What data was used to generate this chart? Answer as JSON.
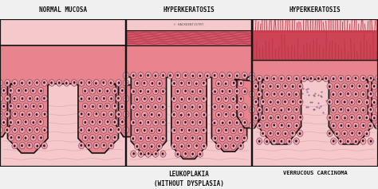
{
  "title_left": "NORMAL MUCOSA",
  "title_mid": "HYPERKERATOSIS",
  "title_right": "HYPERKERATOSIS",
  "label_mid": "LEUKOPLAKIA\n(WITHOUT DYSPLASIA)",
  "label_right": "VERRUCOUS CARCINOMA",
  "watermark": "© HACKDENTISTRY",
  "bg_color": "#f0f0f0",
  "stroma_color": "#f5c8cc",
  "epithelium_fill": "#e8848e",
  "cell_pink": "#f0a0a8",
  "cell_outline": "#1a0a1a",
  "keratin_color_leuko": "#d05868",
  "keratin_color_verr": "#cc4455",
  "border_color": "#111111",
  "text_color": "#111111",
  "scatter_color": "#2a2a5a",
  "figsize": [
    4.74,
    2.37
  ],
  "dpi": 100
}
